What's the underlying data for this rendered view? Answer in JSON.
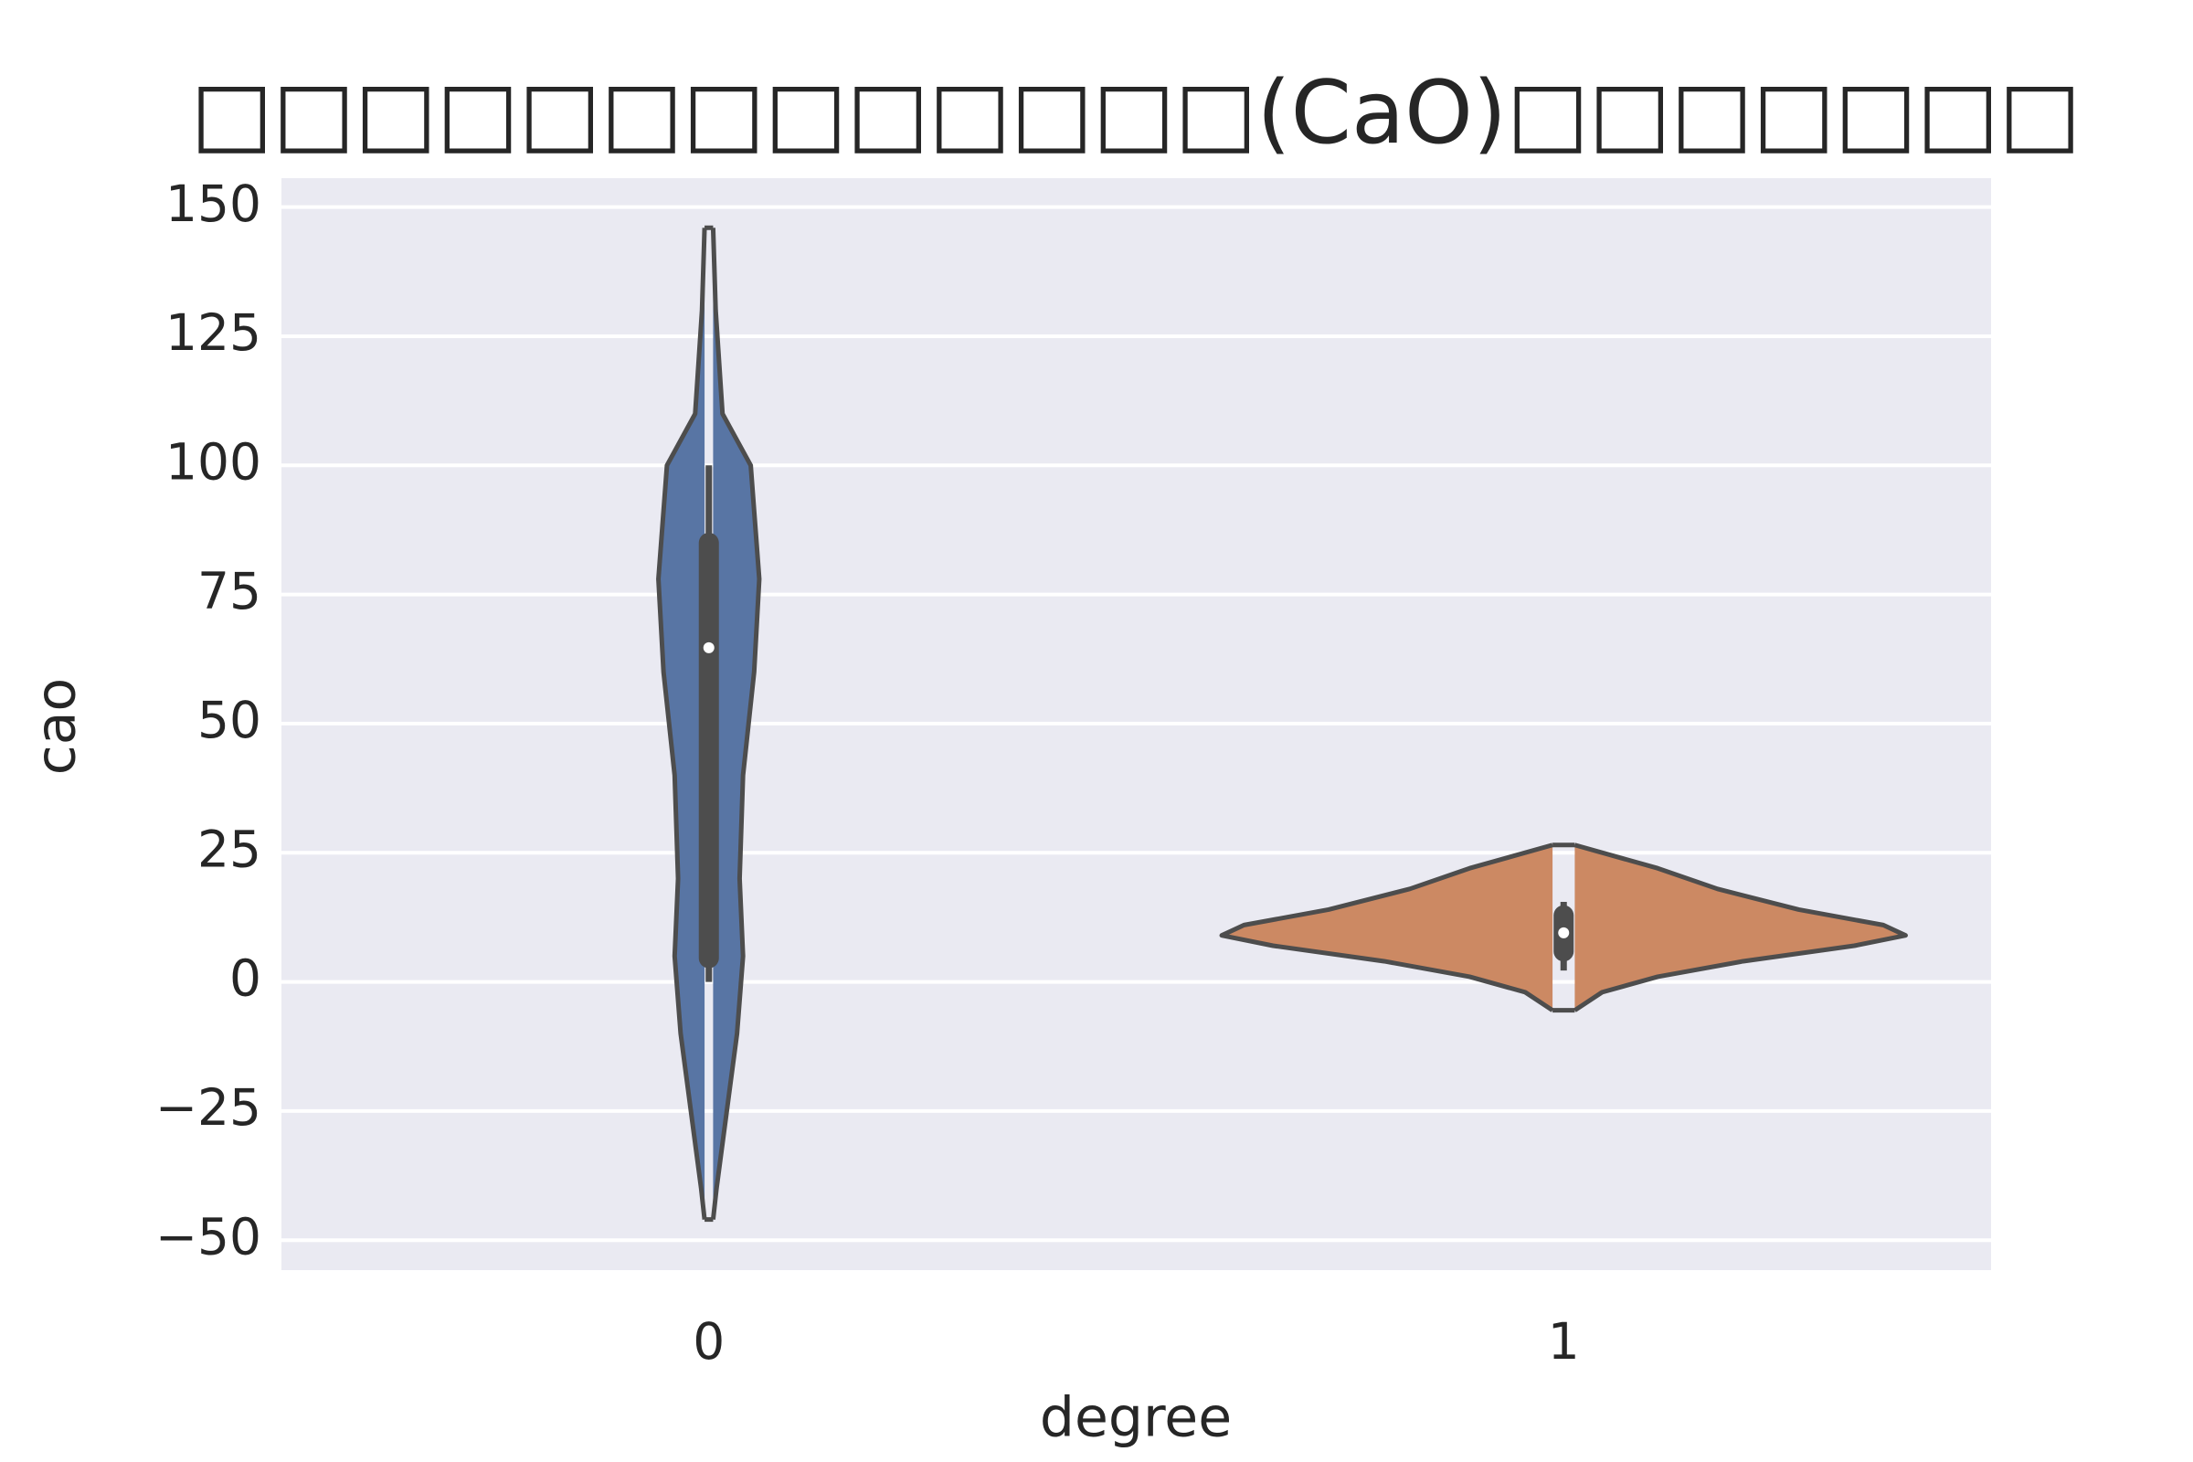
{
  "chart_data": {
    "type": "violin",
    "title": "□□□□□□□□□□□□□(CaO)□□□□□□□",
    "x_label": "degree",
    "y_label": "cao",
    "categories": [
      "0",
      "1"
    ],
    "ylim": [
      -55.8,
      155.6
    ],
    "yticks": [
      {
        "value": -50,
        "label": "−50"
      },
      {
        "value": -25,
        "label": "−25"
      },
      0,
      25,
      50,
      75,
      100,
      125,
      150
    ],
    "grid": true,
    "series": [
      {
        "color": "#5875a4",
        "y": [
          146,
          130,
          110,
          100,
          78,
          60,
          40,
          20,
          5,
          -10,
          -25,
          -40,
          -46
        ],
        "half_width": [
          0.005,
          0.008,
          0.016,
          0.049,
          0.059,
          0.053,
          0.04,
          0.036,
          0.04,
          0.033,
          0.021,
          0.009,
          0.005
        ],
        "whisker": [
          0,
          100
        ],
        "box": [
          4.6,
          85
        ],
        "median": 64.7
      },
      {
        "color": "#cc8963",
        "y": [
          26.5,
          22,
          18,
          14,
          11,
          9,
          7,
          4,
          1,
          -2,
          -5.5
        ],
        "half_width": [
          0.013,
          0.11,
          0.18,
          0.275,
          0.374,
          0.4,
          0.34,
          0.21,
          0.11,
          0.045,
          0.013
        ],
        "whisker": [
          2.2,
          15.5
        ],
        "box": [
          5.9,
          12.9
        ],
        "median": 9.5
      }
    ]
  }
}
